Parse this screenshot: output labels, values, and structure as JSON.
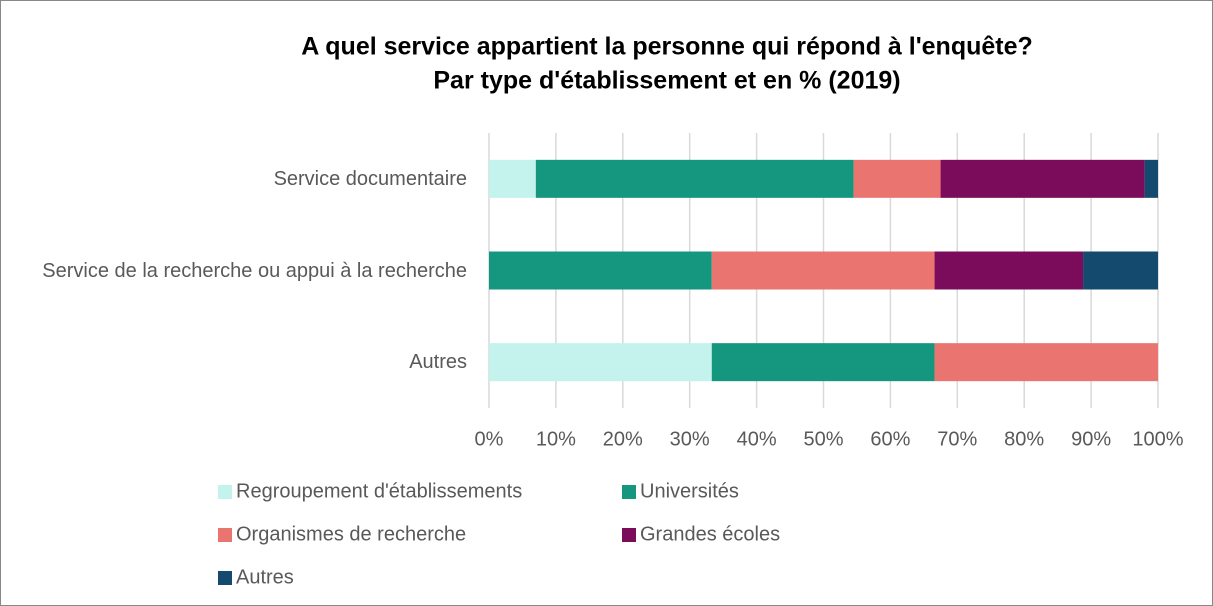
{
  "chart_data": {
    "type": "stacked-bar-horizontal",
    "title": "A quel service appartient la personne qui répond à l'enquête?",
    "subtitle": "Par type d'établissement et en % (2019)",
    "categories": [
      "Service documentaire",
      "Service de la recherche ou appui à la recherche",
      "Autres"
    ],
    "series": [
      {
        "name": "Regroupement d'établissements",
        "color": "#c4f2ec",
        "values": [
          7,
          0,
          33.3
        ]
      },
      {
        "name": "Universités",
        "color": "#14967f",
        "values": [
          47.5,
          33.3,
          33.3
        ]
      },
      {
        "name": "Organismes de recherche",
        "color": "#e97470",
        "values": [
          13,
          33.3,
          33.4
        ]
      },
      {
        "name": "Grandes écoles",
        "color": "#7b0c5b",
        "values": [
          30.5,
          22.2,
          0
        ]
      },
      {
        "name": "Autres",
        "color": "#134a6e",
        "values": [
          2,
          11.2,
          0
        ]
      }
    ],
    "xlim": [
      0,
      100
    ],
    "xticks": [
      {
        "value": 0,
        "label": "0%"
      },
      {
        "value": 10,
        "label": "10%"
      },
      {
        "value": 20,
        "label": "20%"
      },
      {
        "value": 30,
        "label": "30%"
      },
      {
        "value": 40,
        "label": "40%"
      },
      {
        "value": 50,
        "label": "50%"
      },
      {
        "value": 60,
        "label": "60%"
      },
      {
        "value": 70,
        "label": "70%"
      },
      {
        "value": 80,
        "label": "80%"
      },
      {
        "value": 90,
        "label": "90%"
      },
      {
        "value": 100,
        "label": "100%"
      }
    ],
    "grid": true,
    "legend": "bottom"
  }
}
